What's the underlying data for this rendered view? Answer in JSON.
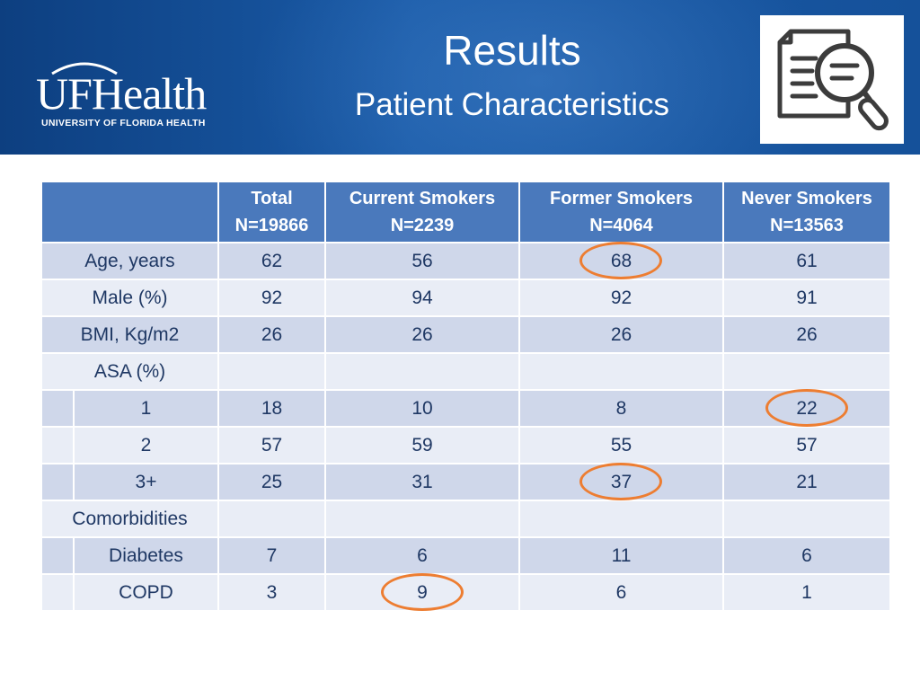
{
  "header": {
    "title": "Results",
    "subtitle": "Patient Characteristics",
    "logo_word": "UFHealth",
    "logo_sub": "UNIVERSITY OF FLORIDA HEALTH",
    "image_icon": "document-magnifier-icon"
  },
  "table": {
    "columns": [
      {
        "name": "Total",
        "n": "N=19866"
      },
      {
        "name": "Current Smokers",
        "n": "N=2239"
      },
      {
        "name": "Former Smokers",
        "n": "N=4064"
      },
      {
        "name": "Never Smokers",
        "n": "N=13563"
      }
    ],
    "rows": [
      {
        "label": "Age, years",
        "indent": false,
        "values": [
          "62",
          "56",
          "68",
          "61"
        ],
        "highlight_col": 2
      },
      {
        "label": "Male (%)",
        "indent": false,
        "values": [
          "92",
          "94",
          "92",
          "91"
        ],
        "highlight_col": null
      },
      {
        "label": "BMI, Kg/m2",
        "indent": false,
        "values": [
          "26",
          "26",
          "26",
          "26"
        ],
        "highlight_col": null
      },
      {
        "label": "ASA (%)",
        "indent": false,
        "values": [
          "",
          "",
          "",
          ""
        ],
        "highlight_col": null
      },
      {
        "label": "1",
        "indent": true,
        "values": [
          "18",
          "10",
          "8",
          "22"
        ],
        "highlight_col": 3
      },
      {
        "label": "2",
        "indent": true,
        "values": [
          "57",
          "59",
          "55",
          "57"
        ],
        "highlight_col": null
      },
      {
        "label": "3+",
        "indent": true,
        "values": [
          "25",
          "31",
          "37",
          "21"
        ],
        "highlight_col": 2
      },
      {
        "label": "Comorbidities",
        "indent": false,
        "values": [
          "",
          "",
          "",
          ""
        ],
        "highlight_col": null
      },
      {
        "label": "Diabetes",
        "indent": true,
        "values": [
          "7",
          "6",
          "11",
          "6"
        ],
        "highlight_col": null
      },
      {
        "label": "COPD",
        "indent": true,
        "values": [
          "3",
          "9",
          "6",
          "1"
        ],
        "highlight_col": 1
      }
    ]
  },
  "colors": {
    "header_bg": "#4a79bc",
    "row_dark": "#cfd7ea",
    "row_light": "#e9edf6",
    "highlight": "#ed7d31",
    "banner": "#15519a"
  }
}
